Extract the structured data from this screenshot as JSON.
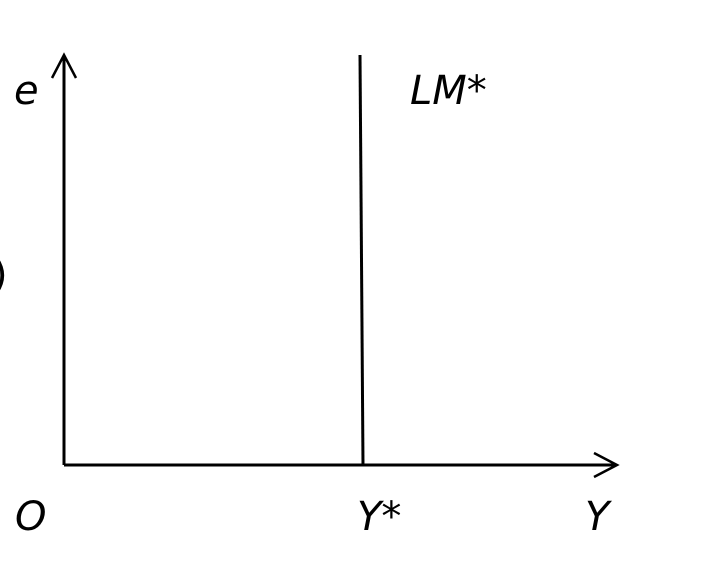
{
  "diagram": {
    "y_axis_label": "e",
    "x_axis_label": "Y",
    "origin_label": "O",
    "curve_label": "LM*",
    "equilibrium_label": "Y*",
    "left_edge_glyph": ")"
  },
  "colors": {
    "line": "#000000",
    "background": "#ffffff"
  }
}
